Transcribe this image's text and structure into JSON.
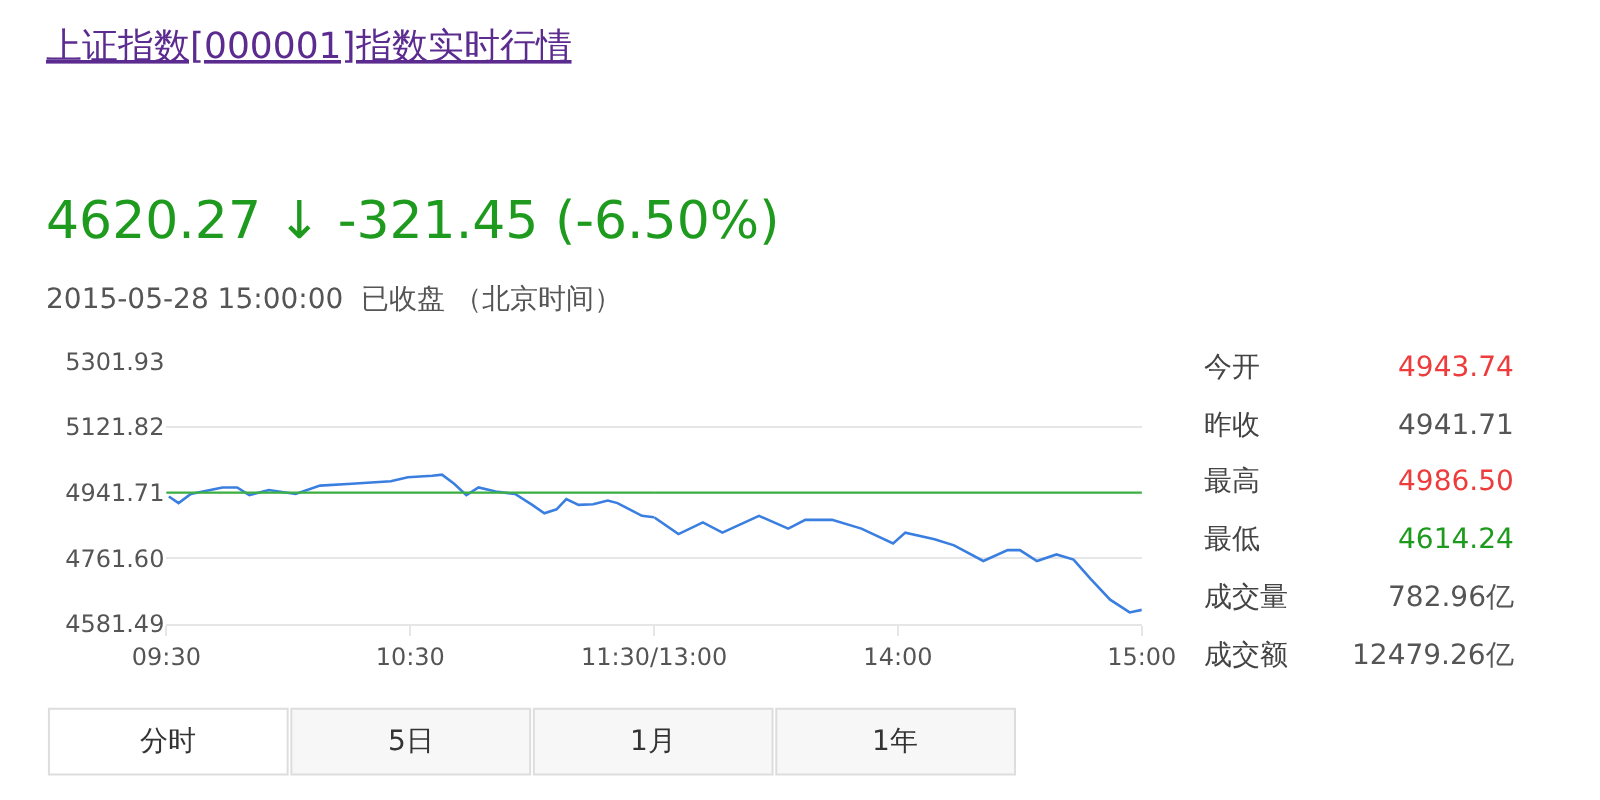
{
  "chart_data": [
    {
      "type": "line",
      "title": "上证指数[000001]指数实时行情",
      "subtitle": "4620.27 ↓ -321.45 (-6.50%)",
      "annotations": [
        "2015-05-28 15:00:00  已收盘 （北京时间）",
        "今开",
        "4943.74",
        "昨收",
        "4941.71",
        "最高",
        "4986.50",
        "最低",
        "4614.24",
        "成交量",
        "782.96亿",
        "成交额",
        "12479.26亿",
        "分时",
        "5日",
        "1月",
        "1年"
      ],
      "x": [
        9.51,
        9.55,
        9.6,
        9.73,
        9.79,
        9.84,
        9.92,
        10.03,
        10.13,
        10.26,
        10.42,
        10.49,
        10.59,
        10.63,
        10.68,
        10.73,
        10.78,
        10.85,
        10.93,
        11,
        11.05,
        11.1,
        11.14,
        11.19,
        11.25,
        11.31,
        11.35,
        11.45,
        11.5
      ],
      "series": [
        {
          "color": "#3a7fe0",
          "values": [
            4931,
            4913,
            4938,
            4956,
            4956,
            4935,
            4949,
            4938,
            4961,
            4966,
            4973,
            4984,
            4988,
            4991,
            4966,
            4935,
            4956,
            4945,
            4938,
            4908,
            4885,
            4896,
            4924,
            4908,
            4910,
            4920,
            4913,
            4878,
            4874
          ]
        }
      ],
      "xlim": [
        9.5,
        11.5
      ],
      "xticks": [
        {
          "value": 9.5,
          "label": "09:30"
        },
        {
          "value": 10.5,
          "label": "10:30"
        },
        {
          "value": 11.5,
          "label": "11:30/13:00"
        }
      ],
      "ylim": [
        4581.49,
        5301.93
      ],
      "yticks": [
        4581.49,
        {
          "value": 4761.6,
          "label": "4761.60"
        },
        4941.71,
        5121.82,
        5301.93
      ],
      "ref_lines": [
        {
          "axis": "y",
          "value": 4941.71,
          "color": "#3cb043"
        }
      ],
      "grid": "y",
      "line_style": "solid",
      "marker": "none"
    },
    {
      "type": "line",
      "x": [
        13,
        13.1,
        13.2,
        13.28,
        13.43,
        13.55,
        13.62,
        13.73,
        13.85,
        13.98,
        14.03,
        14.15,
        14.23,
        14.35,
        14.45,
        14.5,
        14.57,
        14.65,
        14.72,
        14.79,
        14.87,
        14.95,
        15
      ],
      "series": [
        {
          "color": "#3a7fe0",
          "values": [
            4874,
            4828,
            4860,
            4832,
            4878,
            4843,
            4867,
            4867,
            4843,
            4802,
            4832,
            4814,
            4797,
            4754,
            4784,
            4784,
            4754,
            4772,
            4758,
            4705,
            4648,
            4613,
            4620
          ]
        }
      ],
      "xlim": [
        13,
        15
      ],
      "xticks": [
        {
          "value": 14,
          "label": "14:00"
        },
        {
          "value": 15,
          "label": "15:00"
        }
      ],
      "ylim": [
        4581.49,
        5301.93
      ],
      "ref_lines": [
        {
          "axis": "y",
          "value": 4941.71,
          "color": "#3cb043"
        }
      ],
      "grid": "y",
      "tick_labels": "x",
      "line_style": "solid",
      "marker": "none"
    }
  ]
}
